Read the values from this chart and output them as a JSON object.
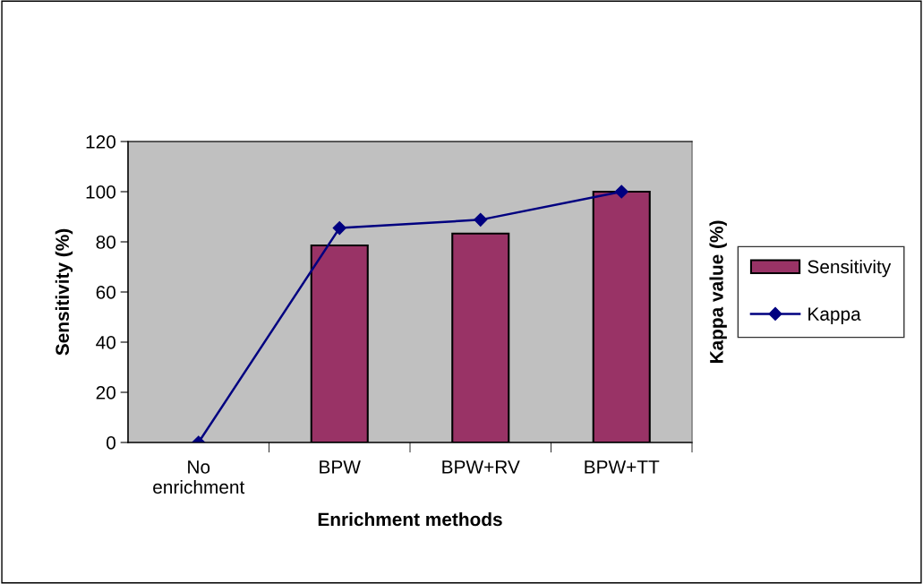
{
  "chart_data": {
    "type": "bar",
    "xlabel": "Enrichment methods",
    "ylabel": "Sensitivity (%)",
    "y2label": "Kappa value (%)",
    "categories": [
      "No\nenrichment",
      "BPW",
      "BPW+RV",
      "BPW+TT"
    ],
    "series": [
      {
        "name": "Sensitivity",
        "color": "#993366",
        "values": [
          null,
          78.6,
          83.3,
          100
        ]
      },
      {
        "name": "Kappa",
        "type": "line",
        "color": "#000080",
        "values": [
          0,
          85.5,
          88.8,
          100
        ],
        "marker": "diamond"
      }
    ],
    "ylim": [
      0,
      120
    ],
    "yticks": [
      0,
      20,
      40,
      60,
      80,
      100,
      120
    ],
    "grid": false,
    "legend": "right"
  }
}
